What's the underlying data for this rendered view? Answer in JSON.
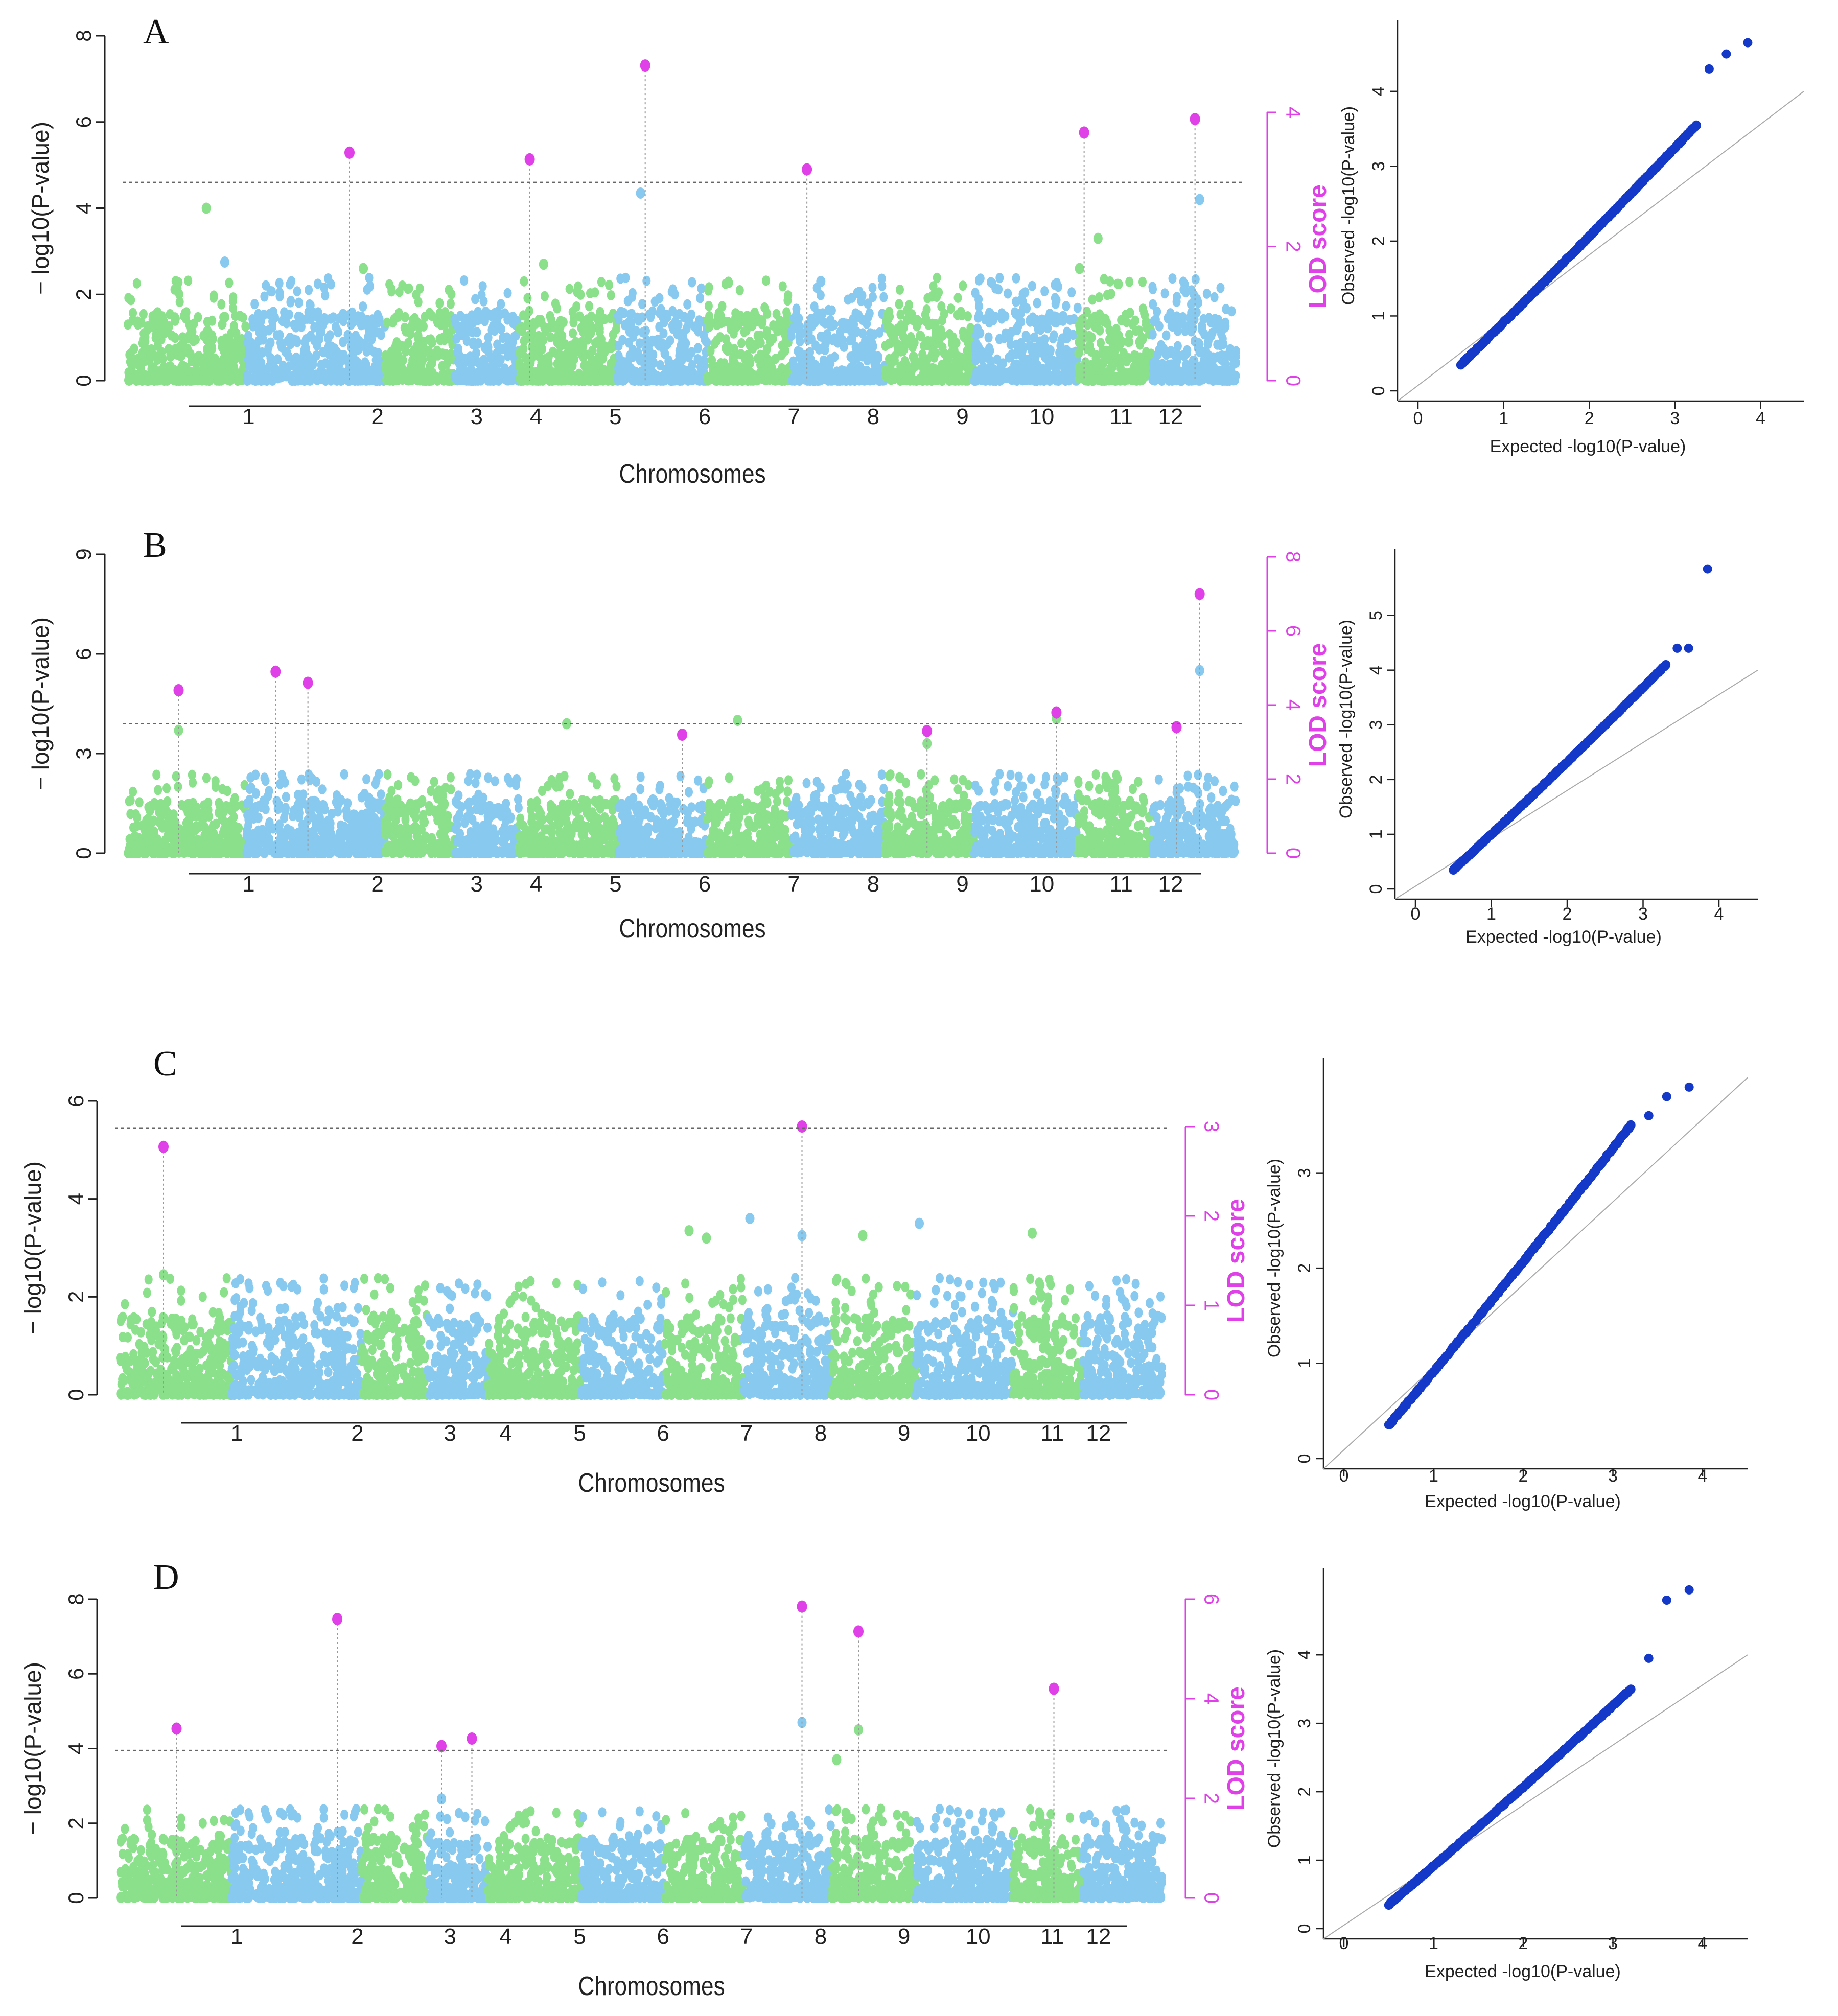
{
  "figure": {
    "panels": [
      {
        "letter": "A",
        "manhattan": {
          "y_label": "− log10(P-value)",
          "y_ticks": [
            "0",
            "2",
            "4",
            "6",
            "8"
          ],
          "ylim": [
            0,
            8
          ],
          "lod_label": "LOD score",
          "lod_ticks": [
            "0",
            "2",
            "4"
          ],
          "lod_lim": [
            0,
            4
          ],
          "threshold": 4.6,
          "x_label": "Chromosomes",
          "chromosomes": [
            "1",
            "2",
            "3",
            "4",
            "5",
            "6",
            "7",
            "8",
            "9",
            "10",
            "11",
            "12"
          ]
        },
        "qq": {
          "x_label": "Expected -log10(P-value)",
          "y_label": "Observed -log10(P-value)",
          "x_ticks": [
            "0",
            "1",
            "2",
            "3",
            "4"
          ],
          "y_ticks": [
            "0",
            "1",
            "2",
            "3",
            "4"
          ],
          "xlim": [
            0,
            4
          ],
          "ylim": [
            0,
            4.7
          ]
        }
      },
      {
        "letter": "B",
        "manhattan": {
          "y_label": "− log10(P-value)",
          "y_ticks": [
            "0",
            "3",
            "6",
            "9"
          ],
          "ylim": [
            0,
            9
          ],
          "lod_label": "LOD score",
          "lod_ticks": [
            "0",
            "2",
            "4",
            "6",
            "8"
          ],
          "lod_lim": [
            0,
            8
          ],
          "threshold": 3.9,
          "x_label": "Chromosomes",
          "chromosomes": [
            "1",
            "2",
            "3",
            "4",
            "5",
            "6",
            "7",
            "8",
            "9",
            "10",
            "11",
            "12"
          ]
        },
        "qq": {
          "x_label": "Expected -log10(P-value)",
          "y_label": "Observed -log10(P-value)",
          "x_ticks": [
            "0",
            "1",
            "2",
            "3",
            "4"
          ],
          "y_ticks": [
            "0",
            "1",
            "2",
            "3",
            "4",
            "5"
          ],
          "xlim": [
            0,
            4
          ],
          "ylim": [
            0,
            5.9
          ]
        }
      },
      {
        "letter": "C",
        "manhattan": {
          "y_label": "− log10(P-value)",
          "y_ticks": [
            "0",
            "2",
            "4",
            "6"
          ],
          "ylim": [
            0,
            6
          ],
          "lod_label": "LOD score",
          "lod_ticks": [
            "0",
            "1",
            "2",
            "3"
          ],
          "lod_lim": [
            0,
            3.3
          ],
          "threshold": 5.45,
          "x_label": "Chromosomes",
          "chromosomes": [
            "1",
            "2",
            "3",
            "4",
            "5",
            "6",
            "7",
            "8",
            "9",
            "10",
            "11",
            "12"
          ]
        },
        "qq": {
          "x_label": "Expected -log10(P-value)",
          "y_label": "Observed -log10(P-value)",
          "x_ticks": [
            "0",
            "1",
            "2",
            "3",
            "4"
          ],
          "y_ticks": [
            "0",
            "1",
            "2",
            "3"
          ],
          "xlim": [
            0,
            4
          ],
          "ylim": [
            0,
            4
          ]
        }
      },
      {
        "letter": "D",
        "manhattan": {
          "y_label": "− log10(P-value)",
          "y_ticks": [
            "0",
            "2",
            "4",
            "6",
            "8"
          ],
          "ylim": [
            0,
            8
          ],
          "lod_label": "LOD score",
          "lod_ticks": [
            "0",
            "2",
            "4",
            "6"
          ],
          "lod_lim": [
            0,
            6
          ],
          "threshold": 3.95,
          "x_label": "Chromosomes",
          "chromosomes": [
            "1",
            "2",
            "3",
            "4",
            "5",
            "6",
            "7",
            "8",
            "9",
            "10",
            "11",
            "12"
          ]
        },
        "qq": {
          "x_label": "Expected -log10(P-value)",
          "y_label": "Observed -log10(P-value)",
          "x_ticks": [
            "0",
            "1",
            "2",
            "3",
            "4"
          ],
          "y_ticks": [
            "0",
            "1",
            "2",
            "3",
            "4"
          ],
          "xlim": [
            0,
            4
          ],
          "ylim": [
            0,
            5
          ]
        }
      }
    ]
  },
  "chart_data": [
    {
      "type": "scatter",
      "panel": "A-manhattan",
      "xlabel": "Chromosomes",
      "ylabel": "− log10(P-value)",
      "ylim": [
        0,
        8
      ],
      "threshold": 4.6,
      "categories": [
        "1",
        "2",
        "3",
        "4",
        "5",
        "6",
        "7",
        "8",
        "9",
        "10",
        "11",
        "12"
      ],
      "series": [
        {
          "name": "",
          "x": [
            1.35,
            1.55,
            3.05,
            5.0,
            6.05,
            8.0,
            10.8,
            11.0,
            12.1
          ],
          "values": [
            4.0,
            2.75,
            2.6,
            2.7,
            4.35,
            2.3,
            2.6,
            3.3,
            4.2
          ]
        }
      ],
      "lod_peaks": [
        {
          "chromosome": "3",
          "pos": 2.9,
          "lod": 3.4
        },
        {
          "chromosome": "5",
          "pos": 4.85,
          "lod": 3.3
        },
        {
          "chromosome": "6",
          "pos": 6.1,
          "lod": 4.7
        },
        {
          "chromosome": "8",
          "pos": 7.85,
          "lod": 3.15
        },
        {
          "chromosome": "11",
          "pos": 10.85,
          "lod": 3.7
        },
        {
          "chromosome": "12",
          "pos": 12.05,
          "lod": 3.9
        }
      ]
    },
    {
      "type": "scatter",
      "panel": "A-qq",
      "xlabel": "Expected -log10(P-value)",
      "ylabel": "Observed -log10(P-value)",
      "xlim": [
        0,
        4
      ],
      "ylim": [
        0,
        4.7
      ],
      "upper_points": [
        [
          3.25,
          3.55
        ],
        [
          3.4,
          4.3
        ],
        [
          3.6,
          4.5
        ],
        [
          3.85,
          4.65
        ]
      ]
    },
    {
      "type": "scatter",
      "panel": "B-manhattan",
      "xlabel": "Chromosomes",
      "ylabel": "− log10(P-value)",
      "ylim": [
        0,
        9
      ],
      "threshold": 3.9,
      "categories": [
        "1",
        "2",
        "3",
        "4",
        "5",
        "6",
        "7",
        "8",
        "9",
        "10",
        "11",
        "12"
      ],
      "series": [
        {
          "name": "",
          "x": [
            1.05,
            5.25,
            7.1,
            9.15,
            10.55,
            12.1
          ],
          "values": [
            3.7,
            3.9,
            4.0,
            3.3,
            4.05,
            5.5
          ]
        }
      ],
      "lod_peaks": [
        {
          "chromosome": "1",
          "pos": 1.05,
          "lod": 4.4
        },
        {
          "chromosome": "2",
          "pos": 2.1,
          "lod": 4.9
        },
        {
          "chromosome": "3",
          "pos": 2.45,
          "lod": 4.6
        },
        {
          "chromosome": "7",
          "pos": 6.5,
          "lod": 3.2
        },
        {
          "chromosome": "9",
          "pos": 9.15,
          "lod": 3.3
        },
        {
          "chromosome": "11",
          "pos": 10.55,
          "lod": 3.8
        },
        {
          "chromosome": "12",
          "pos": 11.85,
          "lod": 3.4
        },
        {
          "chromosome": "12",
          "pos": 12.1,
          "lod": 7.0
        }
      ]
    },
    {
      "type": "scatter",
      "panel": "B-qq",
      "xlabel": "Expected -log10(P-value)",
      "ylabel": "Observed -log10(P-value)",
      "xlim": [
        0,
        4
      ],
      "ylim": [
        0,
        5.9
      ],
      "upper_points": [
        [
          3.3,
          4.1
        ],
        [
          3.45,
          4.4
        ],
        [
          3.6,
          4.4
        ],
        [
          3.85,
          5.85
        ]
      ]
    },
    {
      "type": "scatter",
      "panel": "C-manhattan",
      "xlabel": "Chromosomes",
      "ylabel": "− log10(P-value)",
      "ylim": [
        0,
        6
      ],
      "threshold": 5.45,
      "categories": [
        "1",
        "2",
        "3",
        "4",
        "5",
        "6",
        "7",
        "8",
        "9",
        "10",
        "11",
        "12"
      ],
      "series": [
        {
          "name": "",
          "x": [
            1.0,
            7.05,
            7.25,
            7.75,
            8.35,
            9.05,
            9.7,
            11.0
          ],
          "values": [
            2.45,
            3.35,
            3.2,
            3.6,
            3.25,
            3.25,
            3.5,
            3.3
          ]
        }
      ],
      "lod_peaks": [
        {
          "chromosome": "1",
          "pos": 1.0,
          "lod": 3.05
        },
        {
          "chromosome": "8",
          "pos": 8.35,
          "lod": 3.3
        }
      ]
    },
    {
      "type": "scatter",
      "panel": "C-qq",
      "xlabel": "Expected -log10(P-value)",
      "ylabel": "Observed -log10(P-value)",
      "xlim": [
        0,
        4
      ],
      "ylim": [
        0,
        4
      ],
      "upper_points": [
        [
          3.2,
          3.5
        ],
        [
          3.4,
          3.6
        ],
        [
          3.6,
          3.8
        ],
        [
          3.85,
          3.9
        ]
      ]
    },
    {
      "type": "scatter",
      "panel": "D-manhattan",
      "xlabel": "Chromosomes",
      "ylabel": "− log10(P-value)",
      "ylim": [
        0,
        8
      ],
      "threshold": 3.95,
      "categories": [
        "1",
        "2",
        "3",
        "4",
        "5",
        "6",
        "7",
        "8",
        "9",
        "10",
        "11",
        "12"
      ],
      "series": [
        {
          "name": "",
          "x": [
            4.2,
            8.35,
            8.75,
            9.0
          ],
          "values": [
            2.65,
            4.7,
            3.7,
            4.5
          ]
        }
      ],
      "lod_peaks": [
        {
          "chromosome": "1",
          "pos": 1.15,
          "lod": 3.4
        },
        {
          "chromosome": "3",
          "pos": 3.0,
          "lod": 5.6
        },
        {
          "chromosome": "4",
          "pos": 4.2,
          "lod": 3.05
        },
        {
          "chromosome": "5",
          "pos": 4.55,
          "lod": 3.2
        },
        {
          "chromosome": "8",
          "pos": 8.35,
          "lod": 5.85
        },
        {
          "chromosome": "9",
          "pos": 9.0,
          "lod": 5.35
        },
        {
          "chromosome": "11",
          "pos": 11.25,
          "lod": 4.2
        }
      ]
    },
    {
      "type": "scatter",
      "panel": "D-qq",
      "xlabel": "Expected -log10(P-value)",
      "ylabel": "Observed -log10(P-value)",
      "xlim": [
        0,
        4
      ],
      "ylim": [
        0,
        5
      ],
      "upper_points": [
        [
          3.2,
          3.5
        ],
        [
          3.4,
          3.95
        ],
        [
          3.6,
          4.8
        ],
        [
          3.85,
          4.95
        ]
      ]
    }
  ],
  "colors": {
    "green": "#8be08b",
    "blue": "#88c9ef",
    "magenta": "#e040e8",
    "qq_points": "#1438c8",
    "axis": "#222222",
    "threshold": "#666666"
  }
}
